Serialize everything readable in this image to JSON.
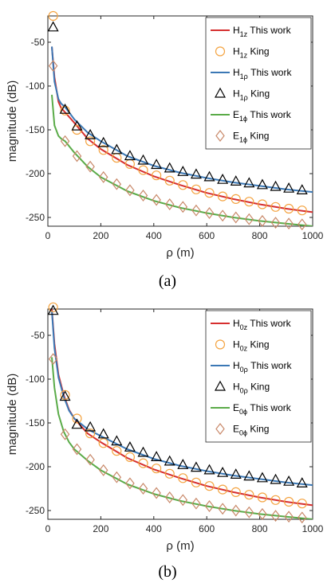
{
  "colors": {
    "red": "#d62f2f",
    "orange": "#f4a340",
    "blue": "#3b78b5",
    "black": "#000000",
    "green": "#5aab48",
    "brown": "#c9896a"
  },
  "chart_data": [
    {
      "type": "line",
      "caption": "(a)",
      "xlabel": "ρ (m)",
      "ylabel": "magnitude (dB)",
      "xlim": [
        0,
        1000
      ],
      "ylim": [
        -260,
        -20
      ],
      "xticks": [
        0,
        200,
        400,
        600,
        800,
        1000
      ],
      "yticks": [
        -50,
        -100,
        -150,
        -200,
        -250
      ],
      "grid": false,
      "legend_position": "top-right",
      "series": [
        {
          "name": "H1z This work",
          "legend": {
            "main": "H",
            "sub": "1z",
            "suffix": " This work"
          },
          "kind": "line",
          "color": "#d62f2f",
          "x": [
            15,
            25,
            40,
            50,
            65,
            100,
            150,
            200,
            300,
            400,
            500,
            600,
            700,
            800,
            900,
            1000
          ],
          "y": [
            -55,
            -90,
            -118,
            -125,
            -130,
            -142,
            -160,
            -172,
            -190,
            -203,
            -213,
            -222,
            -229,
            -235,
            -240,
            -244
          ]
        },
        {
          "name": "H1z King",
          "legend": {
            "main": "H",
            "sub": "1z",
            "suffix": " King"
          },
          "kind": "circle",
          "color": "#f4a340",
          "x": [
            20,
            65,
            110,
            160,
            210,
            260,
            310,
            360,
            410,
            460,
            510,
            560,
            610,
            660,
            710,
            760,
            810,
            860,
            910,
            960
          ],
          "y": [
            -20,
            -128,
            -150,
            -163,
            -173,
            -182,
            -189,
            -196,
            -202,
            -208,
            -213,
            -218,
            -222,
            -226,
            -229,
            -232,
            -235,
            -238,
            -240,
            -242
          ]
        },
        {
          "name": "H1ρ This work",
          "legend": {
            "main": "H",
            "sub": "1ρ",
            "suffix": " This work"
          },
          "kind": "line",
          "color": "#3b78b5",
          "x": [
            15,
            25,
            40,
            50,
            65,
            100,
            150,
            200,
            300,
            400,
            500,
            600,
            700,
            800,
            900,
            1000
          ],
          "y": [
            -55,
            -95,
            -115,
            -120,
            -124,
            -138,
            -153,
            -163,
            -180,
            -191,
            -199,
            -205,
            -210,
            -214,
            -218,
            -221
          ]
        },
        {
          "name": "H1ρ King",
          "legend": {
            "main": "H",
            "sub": "1ρ",
            "suffix": " King"
          },
          "kind": "triangle",
          "color": "#000000",
          "x": [
            20,
            65,
            110,
            160,
            210,
            260,
            310,
            360,
            410,
            460,
            510,
            560,
            610,
            660,
            710,
            760,
            810,
            860,
            910,
            960
          ],
          "y": [
            -33,
            -127,
            -146,
            -156,
            -165,
            -173,
            -180,
            -185,
            -190,
            -194,
            -198,
            -201,
            -204,
            -207,
            -209,
            -211,
            -213,
            -215,
            -217,
            -219
          ]
        },
        {
          "name": "E1ϕ This work",
          "legend": {
            "main": "E",
            "sub": "1ϕ",
            "suffix": " This work"
          },
          "kind": "line",
          "color": "#5aab48",
          "x": [
            15,
            25,
            40,
            50,
            65,
            100,
            150,
            200,
            300,
            400,
            500,
            600,
            700,
            800,
            900,
            1000
          ],
          "y": [
            -110,
            -145,
            -157,
            -160,
            -163,
            -176,
            -192,
            -204,
            -220,
            -231,
            -239,
            -245,
            -250,
            -254,
            -257,
            -260
          ]
        },
        {
          "name": "E1ϕ King",
          "legend": {
            "main": "E",
            "sub": "1ϕ",
            "suffix": " King"
          },
          "kind": "diamond",
          "color": "#c9896a",
          "x": [
            20,
            65,
            110,
            160,
            210,
            260,
            310,
            360,
            410,
            460,
            510,
            560,
            610,
            660,
            710,
            760,
            810,
            860,
            910,
            960
          ],
          "y": [
            -77,
            -163,
            -180,
            -192,
            -204,
            -212,
            -219,
            -225,
            -230,
            -235,
            -238,
            -242,
            -245,
            -248,
            -250,
            -252,
            -254,
            -256,
            -257,
            -258
          ]
        }
      ]
    },
    {
      "type": "line",
      "caption": "(b)",
      "xlabel": "ρ (m)",
      "ylabel": "magnitude (dB)",
      "xlim": [
        0,
        1000
      ],
      "ylim": [
        -260,
        -20
      ],
      "xticks": [
        0,
        200,
        400,
        600,
        800,
        1000
      ],
      "yticks": [
        -50,
        -100,
        -150,
        -200,
        -250
      ],
      "grid": false,
      "legend_position": "top-right",
      "series": [
        {
          "name": "H0z This work",
          "legend": {
            "main": "H",
            "sub": "0z",
            "suffix": " This work"
          },
          "kind": "line",
          "color": "#d62f2f",
          "x": [
            15,
            25,
            40,
            60,
            80,
            100,
            150,
            200,
            300,
            400,
            500,
            600,
            700,
            800,
            900,
            1000
          ],
          "y": [
            -20,
            -60,
            -95,
            -118,
            -135,
            -145,
            -162,
            -172,
            -190,
            -203,
            -213,
            -222,
            -229,
            -235,
            -240,
            -244
          ]
        },
        {
          "name": "H0z King",
          "legend": {
            "main": "H",
            "sub": "0z",
            "suffix": " King"
          },
          "kind": "circle",
          "color": "#f4a340",
          "x": [
            20,
            65,
            110,
            160,
            210,
            260,
            310,
            360,
            410,
            460,
            510,
            560,
            610,
            660,
            710,
            760,
            810,
            860,
            910,
            960
          ],
          "y": [
            -18,
            -118,
            -145,
            -162,
            -173,
            -182,
            -189,
            -196,
            -202,
            -208,
            -213,
            -218,
            -222,
            -226,
            -229,
            -232,
            -235,
            -238,
            -240,
            -242
          ]
        },
        {
          "name": "H0ρ This work",
          "legend": {
            "main": "H",
            "sub": "0ρ",
            "suffix": " This work"
          },
          "kind": "line",
          "color": "#3b78b5",
          "x": [
            15,
            25,
            40,
            60,
            80,
            100,
            150,
            200,
            300,
            400,
            500,
            600,
            700,
            800,
            900,
            1000
          ],
          "y": [
            -22,
            -65,
            -98,
            -120,
            -136,
            -145,
            -157,
            -165,
            -180,
            -191,
            -199,
            -205,
            -210,
            -214,
            -218,
            -221
          ]
        },
        {
          "name": "H0ρ King",
          "legend": {
            "main": "H",
            "sub": "0ρ",
            "suffix": " King"
          },
          "kind": "triangle",
          "color": "#000000",
          "x": [
            20,
            65,
            110,
            160,
            210,
            260,
            310,
            360,
            410,
            460,
            510,
            560,
            610,
            660,
            710,
            760,
            810,
            860,
            910,
            960
          ],
          "y": [
            -22,
            -120,
            -152,
            -155,
            -163,
            -171,
            -178,
            -184,
            -189,
            -194,
            -198,
            -201,
            -204,
            -207,
            -209,
            -211,
            -213,
            -215,
            -217,
            -219
          ]
        },
        {
          "name": "E0ϕ This work",
          "legend": {
            "main": "E",
            "sub": "0ϕ",
            "suffix": " This work"
          },
          "kind": "line",
          "color": "#5aab48",
          "x": [
            15,
            25,
            40,
            60,
            80,
            100,
            150,
            200,
            300,
            400,
            500,
            600,
            700,
            800,
            900,
            1000
          ],
          "y": [
            -75,
            -110,
            -140,
            -160,
            -172,
            -180,
            -193,
            -204,
            -220,
            -231,
            -239,
            -245,
            -250,
            -254,
            -257,
            -260
          ]
        },
        {
          "name": "E0ϕ King",
          "legend": {
            "main": "E",
            "sub": "0ϕ",
            "suffix": " King"
          },
          "kind": "diamond",
          "color": "#c9896a",
          "x": [
            20,
            65,
            110,
            160,
            210,
            260,
            310,
            360,
            410,
            460,
            510,
            560,
            610,
            660,
            710,
            760,
            810,
            860,
            910,
            960
          ],
          "y": [
            -77,
            -163,
            -180,
            -192,
            -204,
            -212,
            -219,
            -225,
            -230,
            -235,
            -238,
            -242,
            -245,
            -248,
            -250,
            -252,
            -254,
            -256,
            -257,
            -258
          ]
        }
      ]
    }
  ]
}
